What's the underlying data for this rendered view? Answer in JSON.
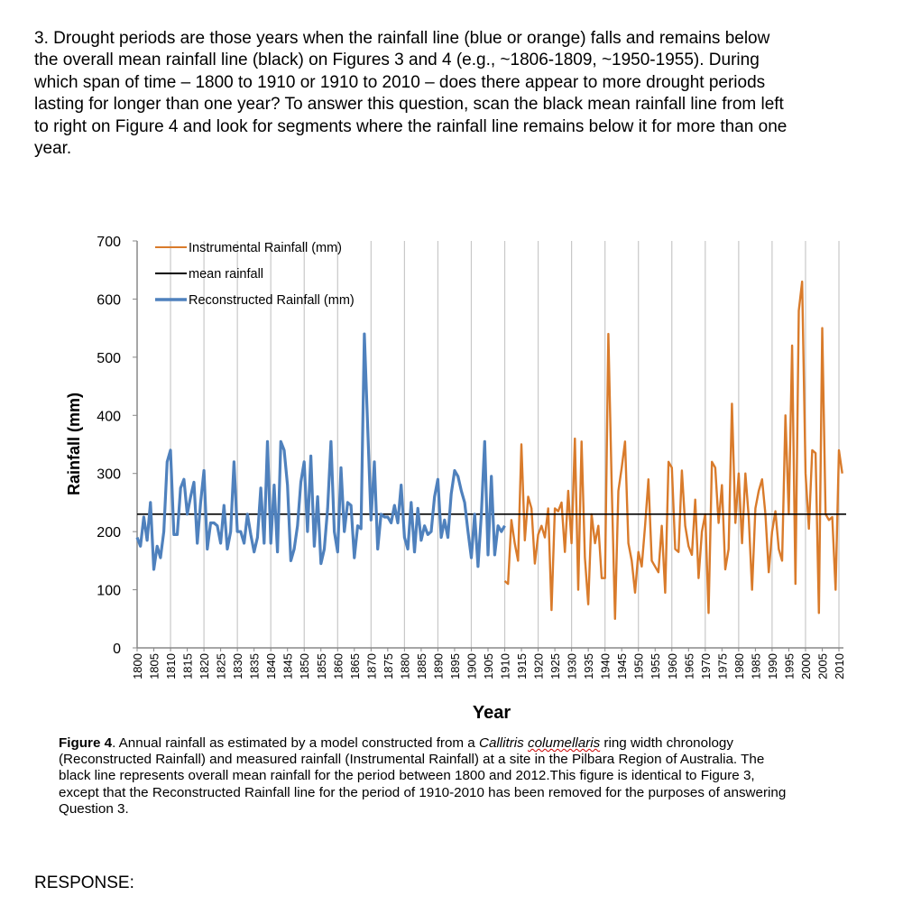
{
  "question": {
    "text": "3. Drought periods are those years when the rainfall line (blue or orange) falls and remains below the overall mean rainfall line (black) on Figures 3 and 4 (e.g., ~1806-1809, ~1950-1955). During which span of time – 1800 to 1910 or 1910 to 2010 – does there appear to more drought periods lasting for longer than one year? To answer this question, scan the black mean rainfall line from left to right on Figure 4 and look for segments where the rainfall line remains below it for more than one year."
  },
  "caption": {
    "label": "Figure 4",
    "text1": ". Annual rainfall as estimated by a model constructed from a ",
    "species": "Callitris",
    "species2": "columellaris",
    "text2": " ring width chronology (Reconstructed Rainfall) and measured rainfall (Instrumental Rainfall) at a site in the Pilbara Region of Australia. The black line represents overall mean rainfall for the period between 1800 and 2012.This figure is identical to Figure 3, except that the Reconstructed Rainfall line for the period of 1910-2010 has been removed for the purposes of answering Question 3."
  },
  "response_label": "RESPONSE:",
  "chart_data": {
    "type": "line",
    "xlabel": "Year",
    "ylabel": "Rainfall (mm)",
    "ylim": [
      0,
      700
    ],
    "yticks": [
      0,
      100,
      200,
      300,
      400,
      500,
      600,
      700
    ],
    "xlim": [
      1800,
      2011
    ],
    "xticks": [
      1800,
      1805,
      1810,
      1815,
      1820,
      1825,
      1830,
      1835,
      1840,
      1845,
      1850,
      1855,
      1860,
      1865,
      1870,
      1875,
      1880,
      1885,
      1890,
      1895,
      1900,
      1905,
      1910,
      1915,
      1920,
      1925,
      1930,
      1935,
      1940,
      1945,
      1950,
      1955,
      1960,
      1965,
      1970,
      1975,
      1980,
      1985,
      1990,
      1995,
      2000,
      2005,
      2010
    ],
    "grid": "vertical",
    "legend_placement": "top-left",
    "series": [
      {
        "name": "Instrumental Rainfall (mm)",
        "color": "#d97b2b",
        "start_year": 1910,
        "values": [
          115,
          110,
          220,
          180,
          150,
          350,
          185,
          260,
          240,
          145,
          195,
          210,
          190,
          240,
          65,
          240,
          235,
          250,
          165,
          270,
          180,
          360,
          100,
          355,
          155,
          75,
          230,
          180,
          210,
          120,
          120,
          540,
          280,
          50,
          270,
          310,
          355,
          180,
          150,
          95,
          165,
          140,
          210,
          290,
          150,
          140,
          130,
          210,
          95,
          320,
          310,
          170,
          165,
          305,
          210,
          175,
          160,
          255,
          120,
          200,
          230,
          60,
          320,
          310,
          215,
          280,
          135,
          170,
          420,
          215,
          300,
          180,
          300,
          225,
          100,
          240,
          270,
          290,
          230,
          130,
          200,
          235,
          170,
          150,
          400,
          230,
          520,
          110,
          580,
          630,
          300,
          205,
          340,
          335,
          60,
          550,
          230,
          220,
          225,
          100,
          340,
          300
        ]
      },
      {
        "name": "mean rainfall",
        "color": "#000000",
        "constant": 230
      },
      {
        "name": "Reconstructed Rainfall (mm)",
        "color": "#4f81bd",
        "start_year": 1800,
        "values": [
          190,
          175,
          225,
          185,
          250,
          135,
          175,
          155,
          200,
          320,
          340,
          195,
          195,
          275,
          290,
          230,
          260,
          285,
          180,
          250,
          305,
          170,
          215,
          215,
          210,
          180,
          245,
          170,
          200,
          320,
          200,
          200,
          180,
          230,
          195,
          165,
          190,
          275,
          180,
          355,
          180,
          280,
          165,
          355,
          340,
          280,
          150,
          170,
          210,
          285,
          320,
          200,
          330,
          175,
          260,
          145,
          170,
          240,
          355,
          200,
          165,
          310,
          200,
          250,
          245,
          155,
          210,
          205,
          540,
          380,
          220,
          320,
          170,
          230,
          225,
          225,
          215,
          245,
          215,
          280,
          190,
          170,
          250,
          165,
          240,
          185,
          210,
          195,
          200,
          260,
          290,
          190,
          220,
          190,
          265,
          305,
          295,
          270,
          250,
          200,
          155,
          230,
          140,
          230,
          355,
          160,
          295,
          160,
          210,
          200,
          210
        ]
      }
    ]
  }
}
